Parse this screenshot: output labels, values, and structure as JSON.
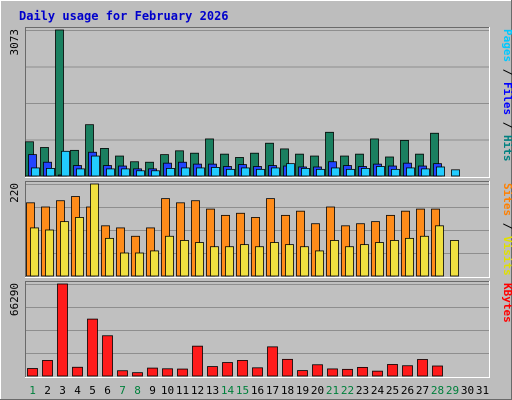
{
  "chart_data": {
    "type": "bar",
    "title": "Daily usage for February 2026",
    "x": [
      1,
      2,
      3,
      4,
      5,
      6,
      7,
      8,
      9,
      10,
      11,
      12,
      13,
      14,
      15,
      16,
      17,
      18,
      19,
      20,
      21,
      22,
      23,
      24,
      25,
      26,
      27,
      28,
      29,
      30,
      31
    ],
    "weekend_days": [
      1,
      7,
      8,
      14,
      15,
      21,
      22,
      28,
      29
    ],
    "panels": [
      {
        "id": "hits",
        "max_label": "3073",
        "ymax": 3073,
        "right_label_parts": [
          {
            "text": "Pages",
            "color": "#00c8ff"
          },
          {
            "text": " / ",
            "color": "#000000"
          },
          {
            "text": "Files",
            "color": "#0000ff"
          },
          {
            "text": " / ",
            "color": "#000000"
          },
          {
            "text": "Hits",
            "color": "#008080"
          }
        ],
        "series": [
          {
            "name": "Hits",
            "color": "#1a8060",
            "values": [
              720,
              600,
              3073,
              540,
              1080,
              580,
              420,
              300,
              290,
              450,
              530,
              480,
              780,
              460,
              390,
              480,
              690,
              570,
              460,
              420,
              920,
              420,
              460,
              780,
              400,
              750,
              460,
              900,
              null,
              null,
              null
            ]
          },
          {
            "name": "Files",
            "color": "#2244ff",
            "values": [
              450,
              290,
              0,
              220,
              500,
              220,
              210,
              150,
              150,
              270,
              290,
              250,
              250,
              200,
              240,
              200,
              220,
              210,
              190,
              190,
              300,
              220,
              200,
              250,
              210,
              270,
              210,
              260,
              null,
              null,
              null
            ]
          },
          {
            "name": "Pages",
            "color": "#22ccff",
            "values": [
              170,
              160,
              520,
              150,
              420,
              150,
              150,
              110,
              110,
              160,
              170,
              170,
              180,
              140,
              170,
              140,
              170,
              260,
              160,
              140,
              170,
              140,
              160,
              200,
              140,
              170,
              150,
              190,
              130,
              null,
              null
            ]
          }
        ]
      },
      {
        "id": "visits",
        "max_label": "220",
        "ymax": 220,
        "right_label_parts": [
          {
            "text": "Sites",
            "color": "#ff8000"
          },
          {
            "text": " / ",
            "color": "#000000"
          },
          {
            "text": "Visits",
            "color": "#e0e000"
          }
        ],
        "series": [
          {
            "name": "Visits",
            "color": "#ff8c1a",
            "values": [
              175,
              165,
              180,
              190,
              165,
              120,
              115,
              95,
              115,
              185,
              175,
              180,
              160,
              145,
              150,
              140,
              185,
              145,
              155,
              125,
              165,
              120,
              125,
              130,
              145,
              155,
              160,
              160,
              null,
              null,
              null
            ]
          },
          {
            "name": "Sites",
            "color": "#f0e040",
            "values": [
              115,
              110,
              130,
              140,
              220,
              90,
              55,
              55,
              60,
              95,
              85,
              80,
              70,
              70,
              75,
              70,
              80,
              75,
              70,
              60,
              85,
              70,
              75,
              80,
              85,
              90,
              95,
              120,
              85,
              null,
              null
            ]
          }
        ]
      },
      {
        "id": "kbytes",
        "max_label": "66290",
        "ymax": 66290,
        "right_label_parts": [
          {
            "text": "KBytes",
            "color": "#ff0000"
          }
        ],
        "series": [
          {
            "name": "KBytes",
            "color": "#ff1a1a",
            "values": [
              5400,
              11200,
              66290,
              6300,
              41000,
              29000,
              3800,
              2400,
              5700,
              5200,
              5000,
              21500,
              6800,
              9700,
              11200,
              5900,
              21000,
              12000,
              3900,
              8100,
              5100,
              4800,
              6200,
              3500,
              8300,
              7400,
              11900,
              7200,
              null,
              null,
              null
            ]
          }
        ]
      }
    ]
  }
}
